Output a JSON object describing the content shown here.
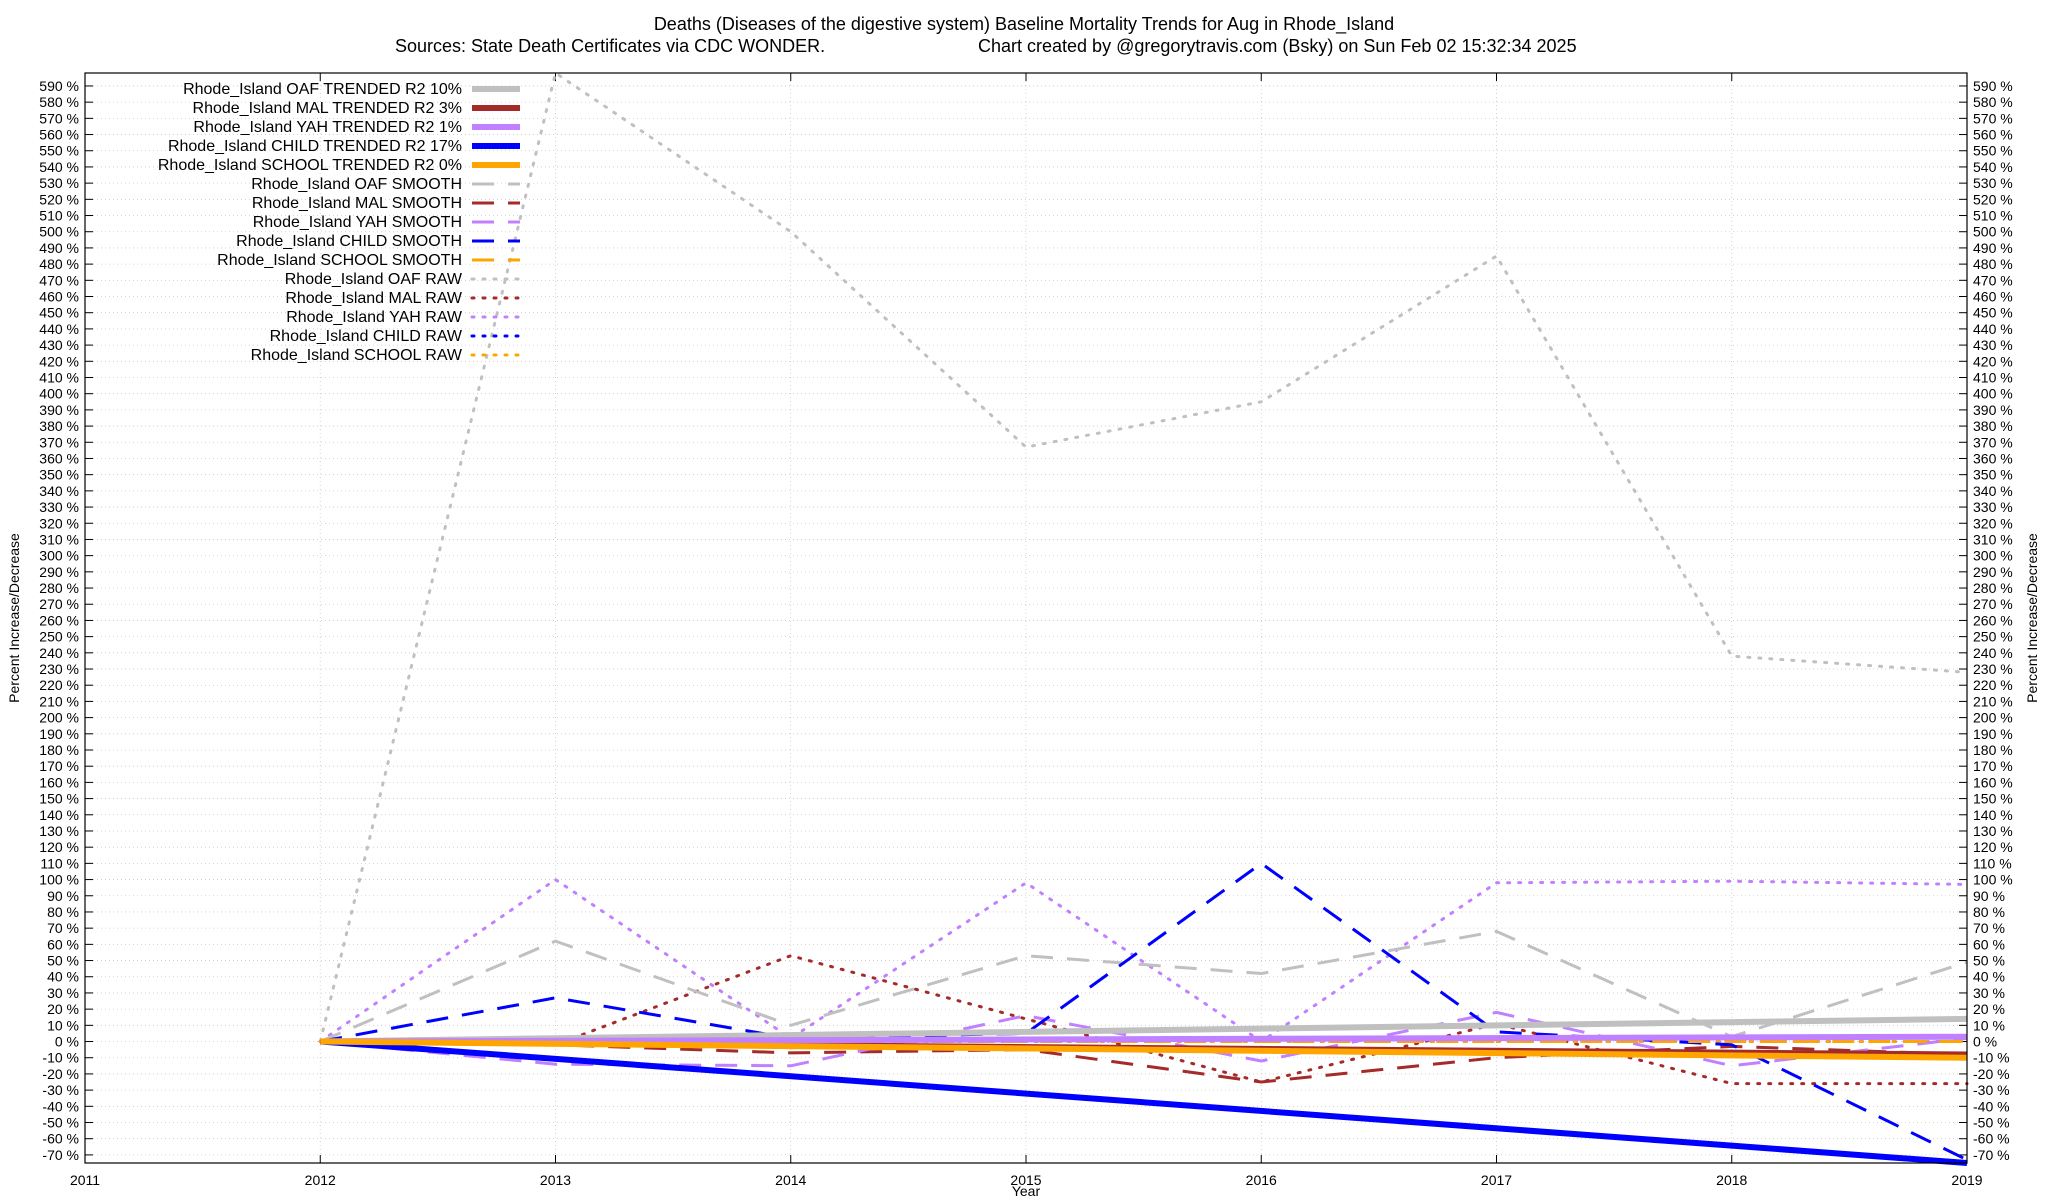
{
  "chart_data": {
    "type": "line",
    "title": "Deaths (Diseases of the digestive system)  Baseline Mortality Trends for Aug in Rhode_Island",
    "subtitle_left": "Sources: State Death Certificates via CDC WONDER.",
    "subtitle_right": "Chart created by @gregorytravis.com (Bsky) on Sun Feb 02 15:32:34 2025",
    "xlabel": "Year",
    "ylabel": "Percent Increase/Decrease",
    "y2label": "Percent Increase/Decrease",
    "xlim": [
      2011,
      2019
    ],
    "ylim": [
      -75,
      598
    ],
    "xticks": [
      2011,
      2012,
      2013,
      2014,
      2015,
      2016,
      2017,
      2018,
      2019
    ],
    "yticks_start": -70,
    "yticks_end": 590,
    "yticks_step": 10,
    "ytick_suffix": " %",
    "grid": true,
    "legend_position": "top-left",
    "series": [
      {
        "name": "Rhode_Island OAF TRENDED R2  10%",
        "style": "solid",
        "color": "#c0c0c0",
        "width": 6,
        "x": [
          2012,
          2019
        ],
        "values": [
          0,
          14
        ]
      },
      {
        "name": "Rhode_Island MAL TRENDED R2  3%",
        "style": "solid",
        "color": "#a52a2a",
        "width": 6,
        "x": [
          2012,
          2019
        ],
        "values": [
          0,
          -8
        ]
      },
      {
        "name": "Rhode_Island YAH TRENDED R2  1%",
        "style": "solid",
        "color": "#c080ff",
        "width": 6,
        "x": [
          2012,
          2019
        ],
        "values": [
          0,
          3
        ]
      },
      {
        "name": "Rhode_Island CHILD TRENDED R2  17%",
        "style": "solid",
        "color": "#0000ff",
        "width": 6,
        "x": [
          2012,
          2019
        ],
        "values": [
          0,
          -75
        ]
      },
      {
        "name": "Rhode_Island SCHOOL TRENDED R2  0%",
        "style": "solid",
        "color": "#ffa500",
        "width": 6,
        "x": [
          2012,
          2019
        ],
        "values": [
          0,
          -10
        ]
      },
      {
        "name": "Rhode_Island OAF SMOOTH",
        "style": "dashed",
        "color": "#c0c0c0",
        "width": 3,
        "x": [
          2012,
          2013,
          2014,
          2015,
          2016,
          2017,
          2018,
          2019
        ],
        "values": [
          0,
          62,
          10,
          53,
          42,
          68,
          3,
          49
        ]
      },
      {
        "name": "Rhode_Island MAL SMOOTH",
        "style": "dashed",
        "color": "#a52a2a",
        "width": 3,
        "x": [
          2012,
          2013,
          2014,
          2015,
          2016,
          2017,
          2018,
          2019
        ],
        "values": [
          0,
          -2,
          -7,
          -5,
          -25,
          -10,
          -3,
          -8
        ]
      },
      {
        "name": "Rhode_Island YAH SMOOTH",
        "style": "dashed",
        "color": "#c080ff",
        "width": 3,
        "x": [
          2012,
          2013,
          2014,
          2015,
          2016,
          2017,
          2018,
          2019
        ],
        "values": [
          0,
          -14,
          -15,
          16,
          -12,
          18,
          -15,
          2
        ]
      },
      {
        "name": "Rhode_Island CHILD SMOOTH",
        "style": "dashed",
        "color": "#0000ff",
        "width": 3,
        "x": [
          2012,
          2013,
          2014,
          2015,
          2016,
          2017,
          2018,
          2019
        ],
        "values": [
          0,
          27,
          2,
          5,
          110,
          6,
          -2,
          -73
        ]
      },
      {
        "name": "Rhode_Island SCHOOL SMOOTH",
        "style": "dashed",
        "color": "#ffa500",
        "width": 3,
        "x": [
          2012,
          2013,
          2014,
          2015,
          2016,
          2017,
          2018,
          2019
        ],
        "values": [
          0,
          0,
          0,
          0,
          0,
          0,
          0,
          0
        ]
      },
      {
        "name": "Rhode_Island OAF RAW",
        "style": "dotted",
        "color": "#c0c0c0",
        "width": 3,
        "x": [
          2012,
          2013,
          2014,
          2015,
          2016,
          2017,
          2018,
          2019
        ],
        "values": [
          0,
          598,
          500,
          367,
          395,
          485,
          238,
          228
        ]
      },
      {
        "name": "Rhode_Island MAL RAW",
        "style": "dotted",
        "color": "#a52a2a",
        "width": 3,
        "x": [
          2012,
          2013,
          2014,
          2015,
          2016,
          2017,
          2018,
          2019
        ],
        "values": [
          0,
          -2,
          53,
          14,
          -25,
          11,
          -26,
          -26
        ]
      },
      {
        "name": "Rhode_Island YAH RAW",
        "style": "dotted",
        "color": "#c080ff",
        "width": 3,
        "x": [
          2012,
          2013,
          2014,
          2015,
          2016,
          2017,
          2018,
          2019
        ],
        "values": [
          0,
          100,
          2,
          98,
          0,
          98,
          99,
          97
        ]
      },
      {
        "name": "Rhode_Island CHILD RAW",
        "style": "dotted",
        "color": "#0000ff",
        "width": 3,
        "x": [
          2012,
          2013,
          2014,
          2015,
          2016,
          2017,
          2018,
          2019
        ],
        "values": [
          0,
          0,
          0,
          0,
          0,
          0,
          0,
          0
        ]
      },
      {
        "name": "Rhode_Island SCHOOL RAW",
        "style": "dotted",
        "color": "#ffa500",
        "width": 3,
        "x": [
          2012,
          2013,
          2014,
          2015,
          2016,
          2017,
          2018,
          2019
        ],
        "values": [
          0,
          0,
          0,
          0,
          0,
          0,
          0,
          0
        ]
      }
    ]
  }
}
